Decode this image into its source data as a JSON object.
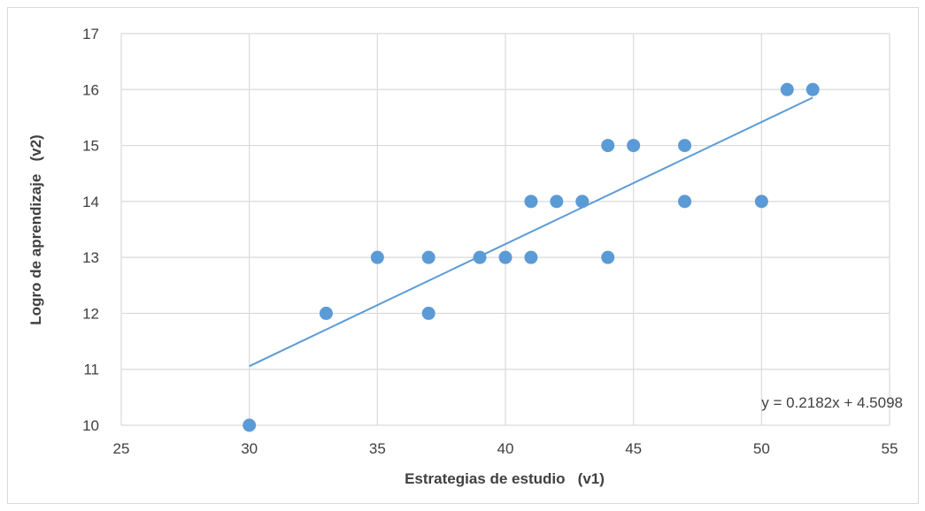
{
  "chart_data": {
    "type": "scatter",
    "title": "",
    "xlabel": "Estrategias de estudio   (v1)",
    "ylabel": "Logro de aprendizaje   (v2)",
    "xlim": [
      25,
      55
    ],
    "ylim": [
      10,
      17
    ],
    "x_ticks": [
      "25",
      "30",
      "35",
      "40",
      "45",
      "50",
      "55"
    ],
    "y_ticks": [
      "10",
      "11",
      "12",
      "13",
      "14",
      "15",
      "16",
      "17"
    ],
    "grid": true,
    "marker_color": "#5b9bd5",
    "trendline_color": "#5b9bd5",
    "points": [
      {
        "x": 30,
        "y": 10
      },
      {
        "x": 33,
        "y": 12
      },
      {
        "x": 35,
        "y": 13
      },
      {
        "x": 37,
        "y": 13
      },
      {
        "x": 37,
        "y": 12
      },
      {
        "x": 39,
        "y": 13
      },
      {
        "x": 40,
        "y": 13
      },
      {
        "x": 41,
        "y": 14
      },
      {
        "x": 41,
        "y": 13
      },
      {
        "x": 42,
        "y": 14
      },
      {
        "x": 43,
        "y": 14
      },
      {
        "x": 44,
        "y": 15
      },
      {
        "x": 44,
        "y": 13
      },
      {
        "x": 45,
        "y": 15
      },
      {
        "x": 47,
        "y": 15
      },
      {
        "x": 47,
        "y": 14
      },
      {
        "x": 50,
        "y": 14
      },
      {
        "x": 51,
        "y": 16
      },
      {
        "x": 52,
        "y": 16
      }
    ],
    "trendline": {
      "slope": 0.2182,
      "intercept": 4.5098,
      "x_range": [
        30,
        52
      ],
      "equation_label": "y = 0.2182x + 4.5098"
    }
  }
}
